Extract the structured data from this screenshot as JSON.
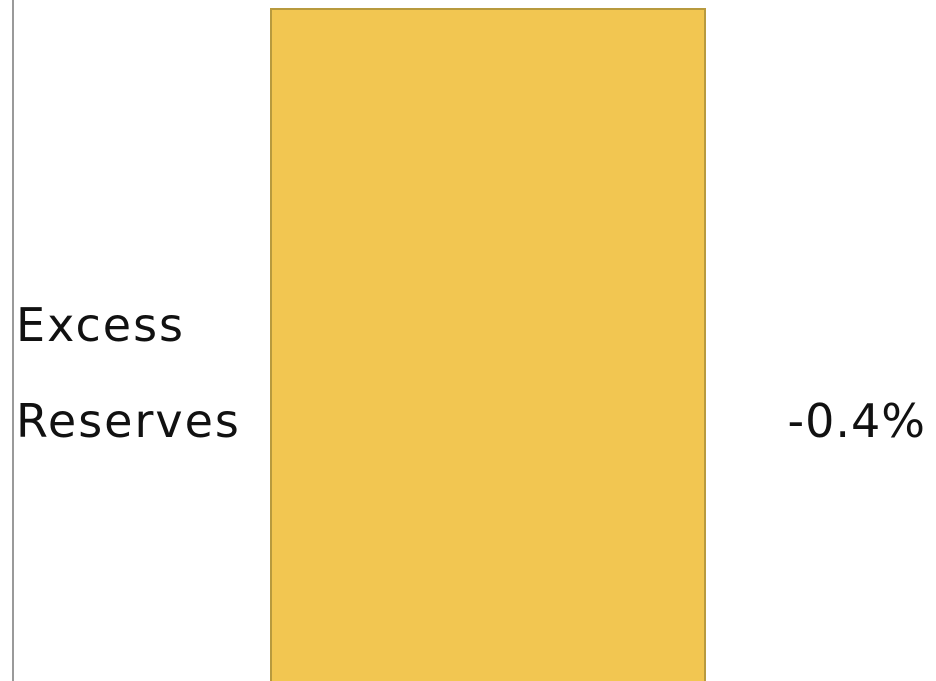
{
  "chart_data": {
    "type": "bar",
    "orientation": "horizontal",
    "categories": [
      "Excess Reserves"
    ],
    "category_lines": [
      [
        "Excess",
        "Reserves"
      ]
    ],
    "values": [
      -0.4
    ],
    "value_labels": [
      "-0.4%"
    ],
    "unit": "%",
    "title": "",
    "xlabel": "",
    "ylabel": "",
    "grid": false,
    "colors": {
      "bar_fill": "#F2C651",
      "bar_stroke": "#B89A3E",
      "axis": "#9a9a9a",
      "text": "#111111"
    }
  }
}
